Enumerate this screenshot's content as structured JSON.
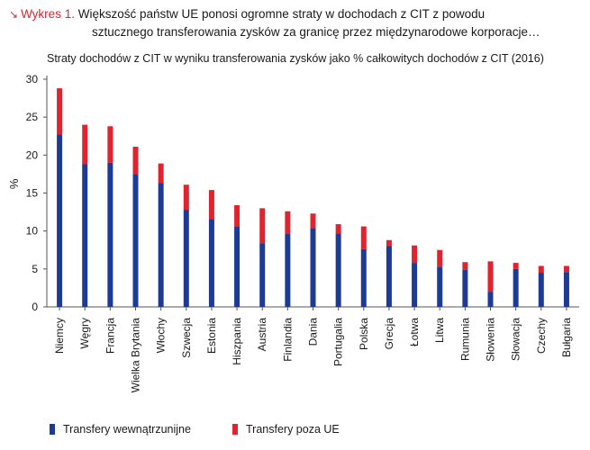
{
  "header": {
    "prefix": "Wykres 1.",
    "title_line1": "Większość państw UE ponosi ogromne straty w dochodach z CIT z powodu",
    "title_line2": "sztucznego transferowania zysków za granicę przez międzynarodowe korporacje…"
  },
  "colors": {
    "intra": "#1d3a94",
    "extra": "#e0232e",
    "axis": "#333333",
    "text": "#1a1a1a"
  },
  "chart_data": {
    "type": "bar",
    "stacked": true,
    "title": "Straty dochodów z CIT w wyniku transferowania zysków jako % całkowitych dochodów z CIT (2016)",
    "xlabel": "",
    "ylabel": "%",
    "ylim": [
      0,
      30
    ],
    "yticks": [
      0,
      5,
      10,
      15,
      20,
      25,
      30
    ],
    "grid": false,
    "legend_position": "bottom",
    "categories": [
      "Niemcy",
      "Węgry",
      "Francja",
      "Wielka Brytania",
      "Włochy",
      "Szwecja",
      "Estonia",
      "Hiszpania",
      "Austria",
      "Finlandia",
      "Dania",
      "Portugalia",
      "Polska",
      "Grecja",
      "Łotwa",
      "Litwa",
      "Rumunia",
      "Słowenia",
      "Słowacja",
      "Czechy",
      "Bułgaria"
    ],
    "series": [
      {
        "name": "Transfery wewnątrzunijne",
        "color": "#1d3a94",
        "values": [
          22.7,
          18.8,
          19.0,
          17.5,
          16.3,
          12.8,
          11.6,
          10.6,
          8.4,
          9.6,
          10.4,
          9.7,
          7.6,
          8.0,
          5.8,
          5.3,
          4.9,
          2.0,
          5.0,
          4.5,
          4.6
        ]
      },
      {
        "name": "Transfery poza UE",
        "color": "#e0232e",
        "values": [
          6.1,
          5.2,
          4.8,
          3.6,
          2.6,
          3.3,
          3.8,
          2.8,
          4.6,
          3.0,
          1.9,
          1.2,
          3.0,
          0.8,
          2.3,
          2.2,
          1.0,
          4.0,
          0.8,
          0.9,
          0.8
        ]
      }
    ]
  }
}
